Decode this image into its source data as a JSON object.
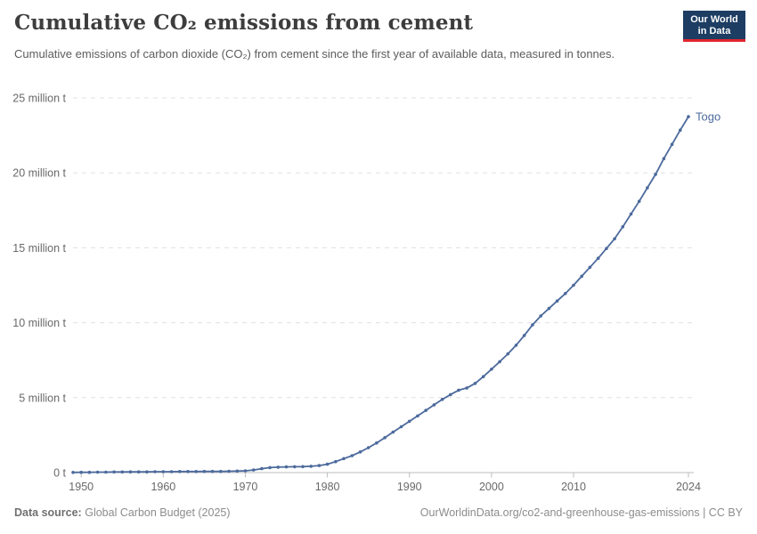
{
  "header": {
    "title": "Cumulative CO₂ emissions from cement",
    "subtitle": "Cumulative emissions of carbon dioxide (CO₂) from cement since the first year of available data, measured in tonnes.",
    "logo": {
      "line1": "Our World",
      "line2": "in Data",
      "bg_color": "#1d3d63",
      "accent_color": "#e0262e"
    }
  },
  "chart_data": {
    "type": "line",
    "title": "Cumulative CO₂ emissions from cement",
    "unit": "million tonnes of CO₂",
    "xlim": [
      1949,
      2024
    ],
    "ylim": [
      0,
      25
    ],
    "grid": "horizontal-dashed",
    "legend_position": "end-of-line-label",
    "x_ticks": [
      1950,
      1960,
      1970,
      1980,
      1990,
      2000,
      2010,
      2024
    ],
    "y_ticks": [
      {
        "value": 0,
        "label": "0 t"
      },
      {
        "value": 5,
        "label": "5 million t"
      },
      {
        "value": 10,
        "label": "10 million t"
      },
      {
        "value": 15,
        "label": "15 million t"
      },
      {
        "value": 20,
        "label": "20 million t"
      },
      {
        "value": 25,
        "label": "25 million t"
      }
    ],
    "series": [
      {
        "name": "Togo",
        "color": "#4c6a9c",
        "years": [
          1949,
          1950,
          1951,
          1952,
          1953,
          1954,
          1955,
          1956,
          1957,
          1958,
          1959,
          1960,
          1961,
          1962,
          1963,
          1964,
          1965,
          1966,
          1967,
          1968,
          1969,
          1970,
          1971,
          1972,
          1973,
          1974,
          1975,
          1976,
          1977,
          1978,
          1979,
          1980,
          1981,
          1982,
          1983,
          1984,
          1985,
          1986,
          1987,
          1988,
          1989,
          1990,
          1991,
          1992,
          1993,
          1994,
          1995,
          1996,
          1997,
          1998,
          1999,
          2000,
          2001,
          2002,
          2003,
          2004,
          2005,
          2006,
          2007,
          2008,
          2009,
          2010,
          2011,
          2012,
          2013,
          2014,
          2015,
          2016,
          2017,
          2018,
          2019,
          2020,
          2021,
          2022,
          2023,
          2024
        ],
        "values": [
          0.01,
          0.02,
          0.02,
          0.03,
          0.03,
          0.04,
          0.04,
          0.05,
          0.05,
          0.05,
          0.06,
          0.06,
          0.06,
          0.07,
          0.07,
          0.07,
          0.08,
          0.08,
          0.08,
          0.09,
          0.1,
          0.12,
          0.17,
          0.26,
          0.33,
          0.36,
          0.38,
          0.39,
          0.4,
          0.42,
          0.47,
          0.56,
          0.73,
          0.93,
          1.13,
          1.38,
          1.66,
          1.98,
          2.33,
          2.7,
          3.06,
          3.42,
          3.78,
          4.15,
          4.52,
          4.88,
          5.2,
          5.5,
          5.65,
          5.95,
          6.4,
          6.9,
          7.4,
          7.92,
          8.5,
          9.15,
          9.85,
          10.45,
          10.95,
          11.45,
          11.95,
          12.5,
          13.1,
          13.7,
          14.3,
          14.95,
          15.6,
          16.4,
          17.25,
          18.1,
          19.0,
          19.9,
          20.95,
          21.9,
          22.85,
          23.75
        ]
      }
    ]
  },
  "footer": {
    "source_label": "Data source:",
    "source_value": "Global Carbon Budget (2025)",
    "attribution": "OurWorldinData.org/co2-and-greenhouse-gas-emissions | CC BY"
  }
}
